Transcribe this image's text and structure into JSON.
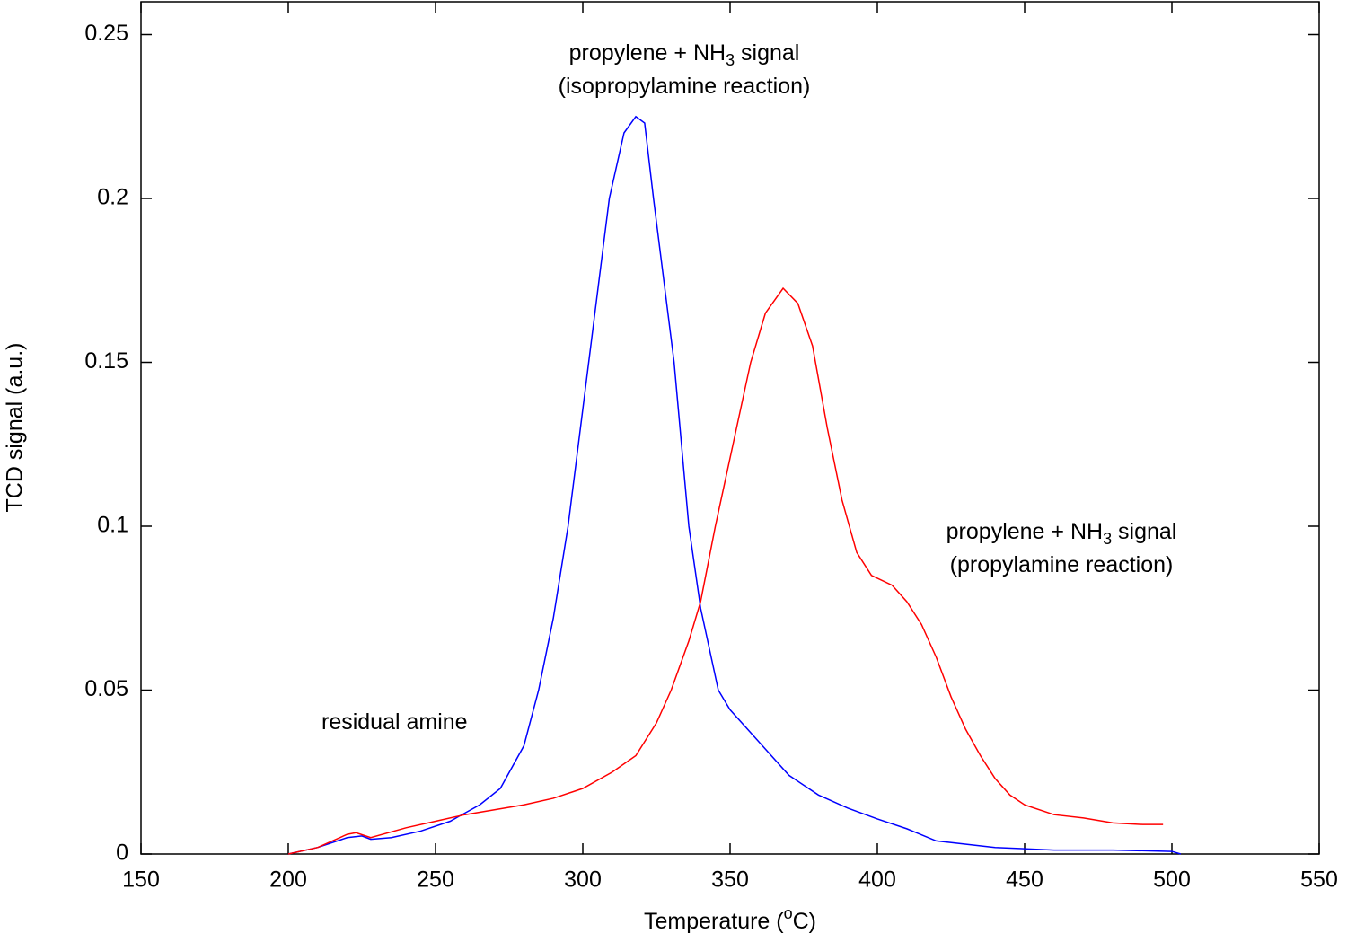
{
  "chart_data": {
    "type": "line",
    "x_label": {
      "text": "Temperature (",
      "sup": "o",
      "tail": "C)"
    },
    "y_label": "TCD signal (a.u.)",
    "xlim": [
      150,
      550
    ],
    "xticks": [
      150,
      200,
      250,
      300,
      350,
      400,
      450,
      500,
      550
    ],
    "ylim": [
      0,
      0.26
    ],
    "yticks": [
      0,
      0.05,
      0.1,
      0.15,
      0.2,
      0.25
    ],
    "grid": false,
    "series": [
      {
        "color": "#0000ff",
        "x": [
          200,
          210,
          220,
          225,
          228,
          235,
          245,
          255,
          265,
          272,
          280,
          285,
          290,
          295,
          302,
          309,
          314,
          318,
          321,
          324,
          331,
          336,
          340,
          346,
          350,
          360,
          370,
          380,
          390,
          400,
          410,
          420,
          440,
          460,
          480,
          500,
          503
        ],
        "values": [
          0,
          0.002,
          0.005,
          0.0055,
          0.0045,
          0.005,
          0.007,
          0.01,
          0.015,
          0.02,
          0.033,
          0.05,
          0.072,
          0.1,
          0.15,
          0.2,
          0.22,
          0.225,
          0.223,
          0.2,
          0.15,
          0.1,
          0.075,
          0.05,
          0.044,
          0.034,
          0.024,
          0.018,
          0.014,
          0.0107,
          0.0077,
          0.004,
          0.002,
          0.0012,
          0.0012,
          0.0008,
          0
        ]
      },
      {
        "color": "#ff0000",
        "x": [
          200,
          210,
          220,
          223,
          228,
          240,
          250,
          260,
          270,
          280,
          290,
          300,
          310,
          318,
          325,
          330,
          336,
          340,
          345,
          351,
          357,
          362,
          368,
          373,
          378,
          383,
          388,
          393,
          398,
          405,
          410,
          415,
          420,
          425,
          430,
          435,
          440,
          445,
          450,
          460,
          470,
          480,
          490,
          497
        ],
        "values": [
          0,
          0.002,
          0.006,
          0.0065,
          0.005,
          0.008,
          0.01,
          0.012,
          0.0135,
          0.015,
          0.017,
          0.02,
          0.025,
          0.03,
          0.04,
          0.05,
          0.065,
          0.077,
          0.1,
          0.125,
          0.15,
          0.165,
          0.1726,
          0.168,
          0.155,
          0.13,
          0.108,
          0.092,
          0.085,
          0.082,
          0.077,
          0.07,
          0.06,
          0.048,
          0.038,
          0.03,
          0.023,
          0.018,
          0.015,
          0.012,
          0.011,
          0.0095,
          0.009,
          0.009
        ]
      }
    ],
    "annotations": [
      {
        "lines": [
          {
            "text": "propylene + NH",
            "sub": "3",
            "tail": " signal"
          },
          {
            "text": "(isopropylamine reaction)"
          }
        ]
      },
      {
        "lines": [
          {
            "text": "propylene + NH",
            "sub": "3",
            "tail": " signal"
          },
          {
            "text": "(propylamine reaction)"
          }
        ]
      },
      {
        "lines": [
          {
            "text": "residual amine"
          }
        ]
      }
    ]
  }
}
